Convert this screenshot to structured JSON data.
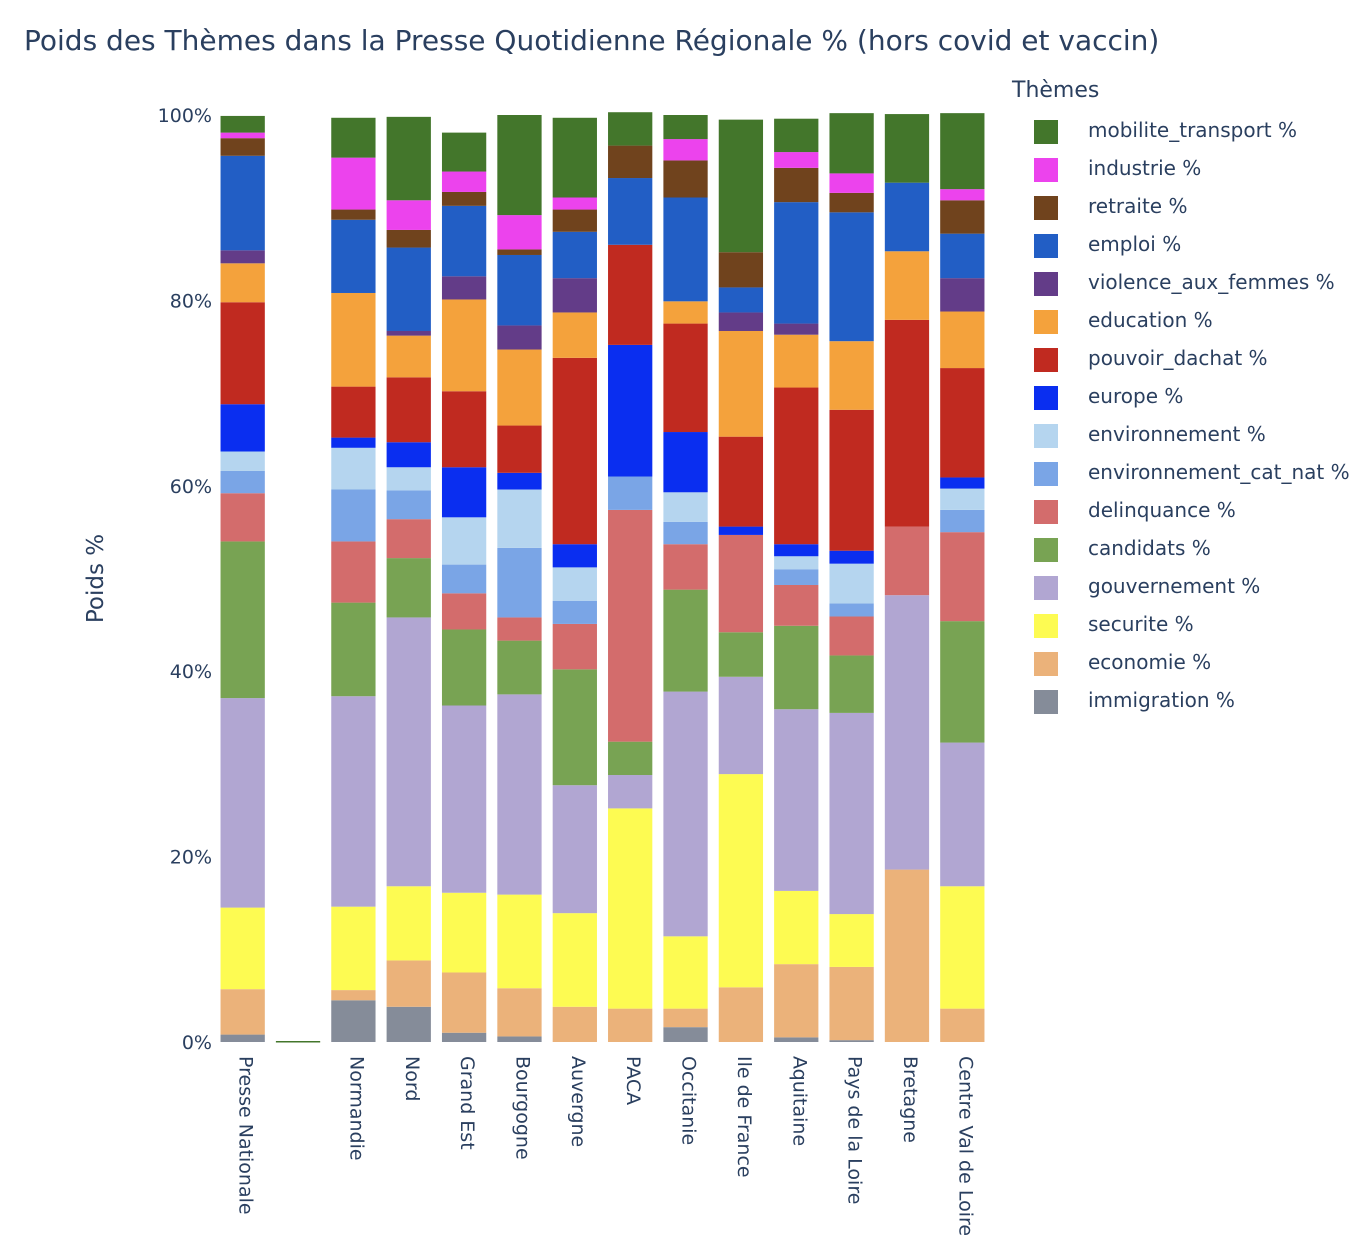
{
  "title": "Poids des Thèmes dans la Presse Quotidienne Régionale % (hors covid et vaccin)",
  "chart_data": {
    "type": "bar",
    "stacked": true,
    "title": "Poids des Thèmes dans la Presse Quotidienne Régionale % (hors covid et vaccin)",
    "xlabel": "",
    "ylabel": "Poids %",
    "ylim": [
      0,
      100
    ],
    "yticks": [
      "0%",
      "20%",
      "40%",
      "60%",
      "80%",
      "100%"
    ],
    "legend_title": "Thèmes",
    "legend_position": "right",
    "categories": [
      "Presse Nationale",
      "",
      "Normandie",
      "Nord",
      "Grand Est",
      "Bourgogne",
      "Auvergne",
      "PACA",
      "Occitanie",
      "Ile de France",
      "Aquitaine",
      "Pays de la Loire",
      "Bretagne",
      "Centre Val de Loire"
    ],
    "series": [
      {
        "name": "immigration %",
        "color": "#858c99",
        "values": [
          0.8,
          0,
          4.5,
          3.8,
          1.0,
          0.6,
          0,
          0,
          1.6,
          0,
          0.5,
          0.2,
          0,
          0
        ]
      },
      {
        "name": "economie %",
        "color": "#ebb27a",
        "values": [
          4.9,
          0,
          1.1,
          5.0,
          6.5,
          5.2,
          3.8,
          3.6,
          2.0,
          5.9,
          7.9,
          7.9,
          18.6,
          3.6
        ]
      },
      {
        "name": "securite %",
        "color": "#fdfb52",
        "values": [
          8.8,
          0,
          9.0,
          8.0,
          8.6,
          10.1,
          10.1,
          21.6,
          7.8,
          23.0,
          7.9,
          5.7,
          0,
          13.2
        ]
      },
      {
        "name": "gouvernement %",
        "color": "#b1a6d2",
        "values": [
          22.6,
          0,
          22.7,
          29.0,
          20.2,
          21.6,
          13.8,
          3.6,
          26.4,
          10.5,
          19.6,
          21.7,
          29.6,
          15.5
        ]
      },
      {
        "name": "candidats %",
        "color": "#78a353",
        "values": [
          16.9,
          0,
          10.1,
          6.4,
          8.2,
          5.8,
          12.5,
          3.6,
          11.0,
          4.8,
          9.0,
          6.2,
          0,
          13.1
        ]
      },
      {
        "name": "delinquance %",
        "color": "#d36c6c",
        "values": [
          5.2,
          0,
          6.6,
          4.2,
          3.9,
          2.5,
          4.9,
          25.0,
          4.9,
          10.5,
          4.4,
          4.2,
          7.4,
          9.6
        ]
      },
      {
        "name": "environnement_cat_nat %",
        "color": "#7aa5e6",
        "values": [
          2.4,
          0,
          5.6,
          3.1,
          3.1,
          7.5,
          2.5,
          3.6,
          2.4,
          0,
          1.7,
          1.4,
          0,
          2.4
        ]
      },
      {
        "name": "environnement %",
        "color": "#b5d5ef",
        "values": [
          2.1,
          0,
          4.5,
          2.5,
          5.1,
          6.3,
          3.6,
          0,
          3.2,
          0,
          1.4,
          4.3,
          0,
          2.3
        ]
      },
      {
        "name": "europe %",
        "color": "#0a2ef0",
        "values": [
          5.1,
          0,
          1.1,
          2.7,
          5.4,
          1.8,
          2.5,
          14.2,
          6.5,
          0.9,
          1.3,
          1.4,
          0,
          1.2
        ]
      },
      {
        "name": "pouvoir_dachat %",
        "color": "#c02a20",
        "values": [
          11.0,
          0,
          5.5,
          7.0,
          8.2,
          5.1,
          20.1,
          10.8,
          11.7,
          9.7,
          16.9,
          15.2,
          22.3,
          11.8
        ]
      },
      {
        "name": "education %",
        "color": "#f4a23c",
        "values": [
          4.2,
          0,
          10.1,
          4.5,
          9.9,
          8.2,
          4.9,
          0,
          2.4,
          11.4,
          5.7,
          7.4,
          7.4,
          6.1
        ]
      },
      {
        "name": "violence_aux_femmes %",
        "color": "#633c88",
        "values": [
          1.4,
          0,
          0,
          0.5,
          2.5,
          2.6,
          3.7,
          0,
          0,
          2.0,
          1.2,
          0,
          0,
          3.6
        ]
      },
      {
        "name": "emploi %",
        "color": "#225ec5",
        "values": [
          10.2,
          0,
          7.9,
          9.0,
          7.6,
          7.6,
          5.0,
          7.2,
          11.2,
          2.7,
          13.1,
          13.9,
          7.4,
          4.8
        ]
      },
      {
        "name": "retraite %",
        "color": "#70431d",
        "values": [
          1.9,
          0,
          1.1,
          1.9,
          1.5,
          0.6,
          2.4,
          3.5,
          4.0,
          3.8,
          3.7,
          2.1,
          0,
          3.6
        ]
      },
      {
        "name": "industrie %",
        "color": "#ec43ed",
        "values": [
          0.6,
          0,
          5.6,
          3.2,
          2.2,
          3.7,
          1.3,
          0,
          2.3,
          0,
          1.7,
          2.1,
          0,
          1.2
        ]
      },
      {
        "name": "mobilite_transport %",
        "color": "#43762b",
        "values": [
          1.8,
          0,
          4.3,
          9.0,
          4.2,
          10.8,
          8.6,
          3.6,
          2.6,
          14.3,
          3.6,
          6.5,
          7.4,
          8.2
        ]
      }
    ],
    "special_bars": [
      {
        "category_index": 1,
        "label": "",
        "color": "#43762b",
        "note": "thin line at 0"
      }
    ]
  }
}
